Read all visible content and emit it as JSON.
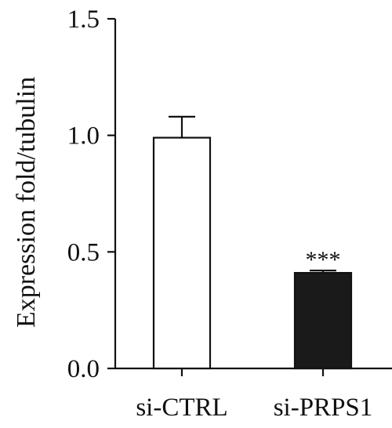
{
  "chart_data": {
    "type": "bar",
    "title": "",
    "xlabel": "",
    "ylabel": "Expression fold/tubulin",
    "ylim": [
      0,
      1.5
    ],
    "yticks": [
      "0.0",
      "0.5",
      "1.0",
      "1.5"
    ],
    "grid": false,
    "categories": [
      "si-CTRL",
      "si-PRPS1"
    ],
    "values": [
      0.99,
      0.41
    ],
    "errors": [
      0.09,
      0.01
    ],
    "bar_fill": [
      "#ffffff",
      "#1a1a1a"
    ],
    "annotations": [
      "",
      "***"
    ]
  }
}
